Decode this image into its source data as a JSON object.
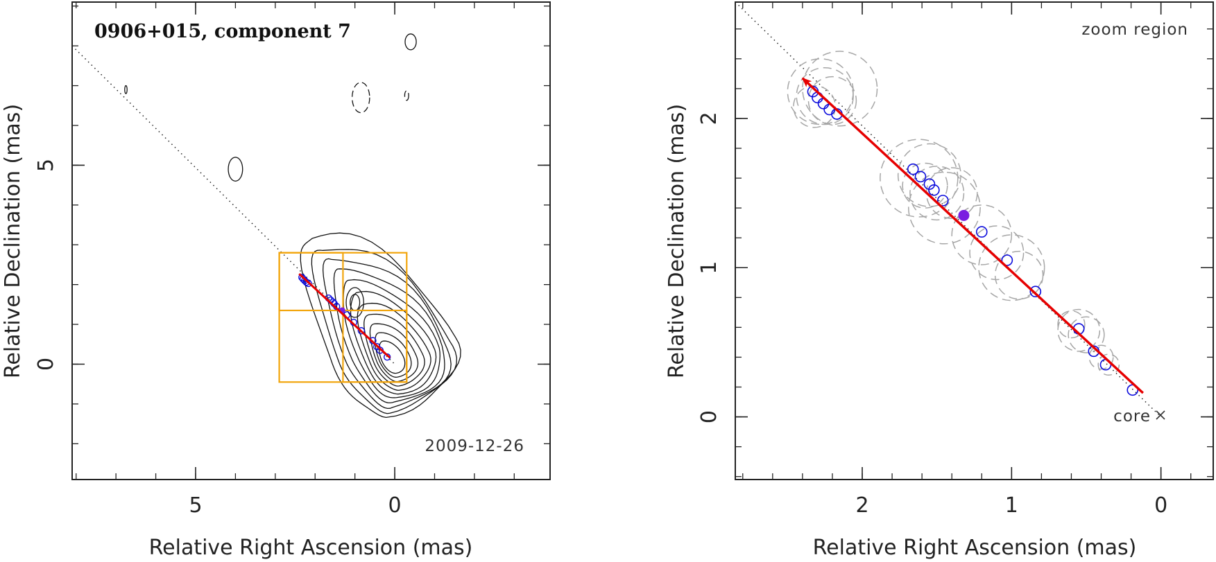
{
  "chart_data": [
    {
      "type": "scatter",
      "panel": "left",
      "title": "0906+015, component 7",
      "date_label": "2009-12-26",
      "xlabel": "Relative Right Ascension (mas)",
      "ylabel": "Relative Declination (mas)",
      "xlim": [
        8.1,
        -3.9
      ],
      "ylim": [
        -2.9,
        9.1
      ],
      "xticks": [
        {
          "value": 5,
          "label": "5"
        },
        {
          "value": 0,
          "label": "0"
        }
      ],
      "yticks": [
        {
          "value": 5,
          "label": "5"
        },
        {
          "value": 0,
          "label": "0"
        }
      ],
      "jet_axis_line": {
        "from": [
          8.1,
          8.0
        ],
        "to": [
          0,
          0
        ]
      },
      "velocity_vector": {
        "from": [
          0.12,
          0.16
        ],
        "to": [
          2.4,
          2.27
        ]
      },
      "component_positions": [
        [
          2.33,
          2.18
        ],
        [
          2.3,
          2.14
        ],
        [
          2.26,
          2.1
        ],
        [
          2.22,
          2.06
        ],
        [
          2.17,
          2.03
        ],
        [
          1.66,
          1.66
        ],
        [
          1.61,
          1.61
        ],
        [
          1.55,
          1.56
        ],
        [
          1.52,
          1.52
        ],
        [
          1.46,
          1.45
        ],
        [
          1.2,
          1.24
        ],
        [
          1.03,
          1.05
        ],
        [
          0.84,
          0.84
        ],
        [
          0.55,
          0.59
        ],
        [
          0.45,
          0.44
        ],
        [
          0.37,
          0.35
        ],
        [
          0.19,
          0.18
        ]
      ],
      "highlighted_point": [
        1.32,
        1.35
      ],
      "zoom_boxes": [
        {
          "x": [
            -0.3,
            2.9
          ],
          "y": [
            -0.45,
            2.8
          ]
        },
        {
          "x": [
            1.3,
            2.9
          ],
          "y": [
            1.35,
            2.8
          ]
        },
        {
          "x": [
            -0.3,
            1.3
          ],
          "y": [
            -0.45,
            1.35
          ]
        }
      ],
      "contour_source": {
        "center": [
          0.05,
          0.1
        ],
        "levels": 11,
        "extent": [
          [
            -0.85,
            3.3
          ],
          [
            -1.85,
            3.6
          ]
        ]
      },
      "negative_contours": [
        [
          0.85,
          6.7
        ],
        [
          -0.3,
          6.75
        ]
      ],
      "isolated_contours": [
        [
          -0.4,
          8.1
        ],
        [
          4.0,
          4.9
        ],
        [
          6.75,
          6.9
        ]
      ]
    },
    {
      "type": "scatter",
      "panel": "right",
      "title": "zoom region",
      "core_label": "core",
      "xlabel": "Relative Right Ascension (mas)",
      "ylabel": "Relative Declination (mas)",
      "xlim": [
        2.85,
        -0.35
      ],
      "ylim": [
        -0.42,
        2.78
      ],
      "xticks": [
        {
          "value": 2,
          "label": "2"
        },
        {
          "value": 1,
          "label": "1"
        },
        {
          "value": 0,
          "label": "0"
        }
      ],
      "yticks": [
        {
          "value": 2,
          "label": "2"
        },
        {
          "value": 1,
          "label": "1"
        },
        {
          "value": 0,
          "label": "0"
        }
      ],
      "jet_axis_line": {
        "from": [
          2.85,
          2.78
        ],
        "to": [
          0,
          0
        ]
      },
      "velocity_vector": {
        "from": [
          0.12,
          0.16
        ],
        "to": [
          2.4,
          2.27
        ]
      },
      "component_positions": [
        [
          2.33,
          2.18
        ],
        [
          2.3,
          2.14
        ],
        [
          2.26,
          2.1
        ],
        [
          2.22,
          2.06
        ],
        [
          2.17,
          2.03
        ],
        [
          1.66,
          1.66
        ],
        [
          1.61,
          1.61
        ],
        [
          1.55,
          1.56
        ],
        [
          1.52,
          1.52
        ],
        [
          1.46,
          1.45
        ],
        [
          1.2,
          1.24
        ],
        [
          1.03,
          1.05
        ],
        [
          0.84,
          0.84
        ],
        [
          0.55,
          0.59
        ],
        [
          0.45,
          0.44
        ],
        [
          0.37,
          0.35
        ],
        [
          0.19,
          0.18
        ]
      ],
      "highlighted_point": [
        1.32,
        1.35
      ],
      "component_sizes": [
        [
          2.28,
          2.18,
          0.22
        ],
        [
          2.25,
          2.15,
          0.19
        ],
        [
          2.2,
          2.12,
          0.16
        ],
        [
          2.15,
          2.2,
          0.25
        ],
        [
          2.32,
          2.08,
          0.14
        ],
        [
          1.62,
          1.6,
          0.26
        ],
        [
          1.55,
          1.62,
          0.21
        ],
        [
          1.5,
          1.5,
          0.18
        ],
        [
          1.45,
          1.4,
          0.24
        ],
        [
          1.58,
          1.55,
          0.15
        ],
        [
          1.4,
          1.5,
          0.17
        ],
        [
          1.2,
          1.22,
          0.2
        ],
        [
          1.1,
          1.1,
          0.18
        ],
        [
          1.0,
          1.0,
          0.22
        ],
        [
          0.95,
          0.95,
          0.16
        ],
        [
          0.55,
          0.58,
          0.14
        ],
        [
          0.5,
          0.55,
          0.12
        ],
        [
          0.6,
          0.62,
          0.09
        ],
        [
          0.4,
          0.4,
          0.08
        ],
        [
          0.35,
          0.35,
          0.07
        ]
      ]
    }
  ],
  "colors": {
    "contour": "#111111",
    "marker": "#0b0bdc",
    "vector": "#e60000",
    "highlight": "#7a1fe0",
    "zoom_box": "#f2a50c",
    "component_size": "#a6a6a6"
  }
}
